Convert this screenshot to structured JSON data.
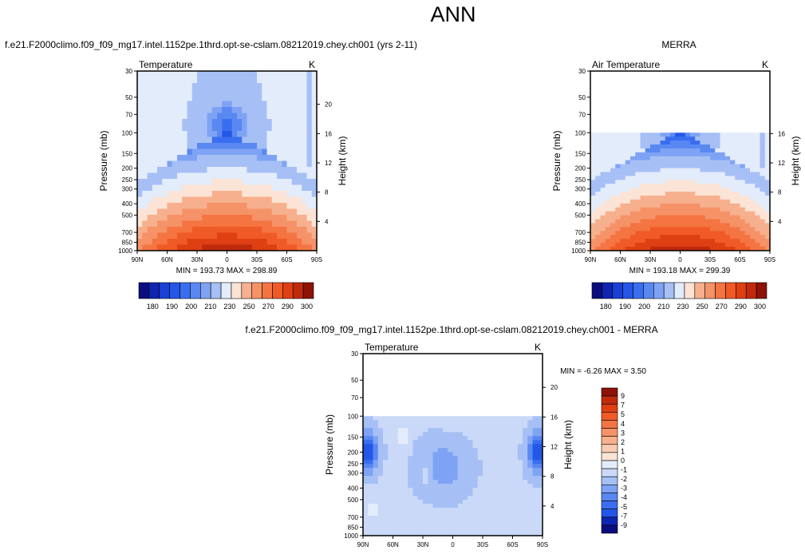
{
  "figure": {
    "title": "ANN",
    "subtitles": {
      "model": "f.e21.F2000climo.f09_f09_mg17.intel.1152pe.1thrd.opt-se-cslam.08212019.chey.ch001 (yrs 2-11)",
      "obs": "MERRA",
      "diff": "f.e21.F2000climo.f09_f09_mg17.intel.1152pe.1thrd.opt-se-cslam.08212019.chey.ch001 - MERRA"
    },
    "colors": {
      "blue_ramp": [
        "#0b0d7e",
        "#0f24b0",
        "#1a3fd6",
        "#2456e8",
        "#3a6ef0",
        "#5a88f2",
        "#7fa3f4",
        "#a6c0f6",
        "#cad9f7",
        "#e3ecfa"
      ],
      "red_ramp": [
        "#fbe3d6",
        "#f9ccb3",
        "#f7b08d",
        "#f69268",
        "#f47442",
        "#f05a26",
        "#de3f13",
        "#bf2a0c",
        "#8e1206"
      ]
    }
  },
  "chart_data": [
    {
      "type": "heatmap",
      "id": "model",
      "title": "Temperature",
      "units": "K",
      "xlabel": "",
      "ylabel": "Pressure (mb)",
      "ylabel_right": "Height (km)",
      "x_ticks": [
        "90N",
        "60N",
        "30N",
        "0",
        "30S",
        "60S",
        "90S"
      ],
      "y_ticks": [
        30,
        50,
        70,
        100,
        150,
        200,
        250,
        300,
        400,
        500,
        700,
        850,
        1000
      ],
      "y_right_ticks": [
        4,
        8,
        12,
        16,
        20
      ],
      "ylim": [
        1000,
        30
      ],
      "ylog": true,
      "stats": "MIN = 193.73  MAX = 298.89",
      "min": 193.73,
      "max": 298.89,
      "data_top_mb": 30
    },
    {
      "type": "heatmap",
      "id": "obs",
      "title": "Air Temperature",
      "units": "K",
      "xlabel": "",
      "ylabel": "Pressure (mb)",
      "ylabel_right": "Height (km)",
      "x_ticks": [
        "90N",
        "60N",
        "30N",
        "0",
        "30S",
        "60S",
        "90S"
      ],
      "y_ticks": [
        30,
        50,
        70,
        100,
        150,
        200,
        250,
        300,
        400,
        500,
        700,
        850,
        1000
      ],
      "y_right_ticks": [
        4,
        8,
        12,
        16
      ],
      "ylim": [
        1000,
        30
      ],
      "ylog": true,
      "stats": "MIN = 193.18  MAX = 299.39",
      "min": 193.18,
      "max": 299.39,
      "data_top_mb": 100
    },
    {
      "type": "heatmap",
      "id": "diff",
      "title": "Temperature",
      "units": "K",
      "xlabel": "",
      "ylabel": "Pressure (mb)",
      "ylabel_right": "Height (km)",
      "x_ticks": [
        "90N",
        "60N",
        "30N",
        "0",
        "30S",
        "60S",
        "90S"
      ],
      "y_ticks": [
        30,
        50,
        70,
        100,
        150,
        200,
        250,
        300,
        400,
        500,
        700,
        850,
        1000
      ],
      "y_right_ticks": [
        4,
        8,
        12,
        16,
        20
      ],
      "ylim": [
        1000,
        30
      ],
      "ylog": true,
      "stats": "MIN =  -6.26  MAX =   3.50",
      "min": -6.26,
      "max": 3.5,
      "data_top_mb": 100
    }
  ],
  "colorbars": {
    "abs": {
      "labels": [
        "180",
        "190",
        "200",
        "210",
        "230",
        "250",
        "270",
        "290",
        "300"
      ],
      "levels": [
        180,
        185,
        190,
        195,
        200,
        205,
        210,
        220,
        230,
        240,
        250,
        260,
        270,
        280,
        290,
        295,
        300
      ],
      "colors": [
        "#0b0d7e",
        "#0f24b0",
        "#1a3fd6",
        "#2456e8",
        "#3a6ef0",
        "#5a88f2",
        "#7fa3f4",
        "#a6c0f6",
        "#e3ecfa",
        "#fbe3d6",
        "#f7b08d",
        "#f69268",
        "#f47442",
        "#f05a26",
        "#de3f13",
        "#bf2a0c",
        "#8e1206"
      ]
    },
    "diff": {
      "labels": [
        "9",
        "7",
        "5",
        "4",
        "3",
        "2",
        "1",
        "0",
        "-1",
        "-2",
        "-3",
        "-4",
        "-5",
        "-7",
        "-9"
      ],
      "colors": [
        "#8e1206",
        "#bf2a0c",
        "#de3f13",
        "#f05a26",
        "#f47442",
        "#f69268",
        "#f7b08d",
        "#f9ccb3",
        "#fbe3d6",
        "#e3ecfa",
        "#cad9f7",
        "#a6c0f6",
        "#7fa3f4",
        "#5a88f2",
        "#3a6ef0",
        "#2456e8",
        "#0f24b0",
        "#0b0d7e"
      ]
    }
  }
}
